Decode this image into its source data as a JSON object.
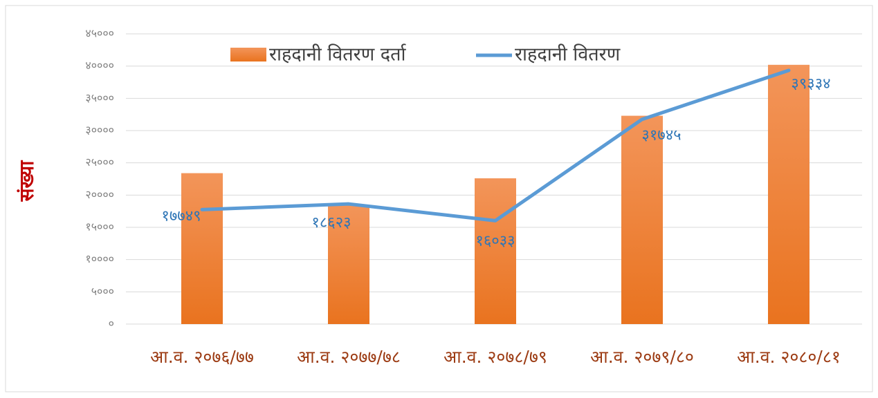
{
  "chart_data": {
    "type": "bar",
    "ylabel": "संख्या",
    "categories": [
      "आ.व. २०७६/७७",
      "आ.व. २०७७/७८",
      "आ.व. २०७८/७९",
      "आ.व. २०७९/८०",
      "आ.व. २०८०/८१"
    ],
    "series": [
      {
        "name": "राहदानी वितरण दर्ता",
        "type": "bar",
        "color": "#ed7d31",
        "values": [
          23400,
          18500,
          22600,
          32300,
          40200
        ]
      },
      {
        "name": "राहदानी वितरण",
        "type": "line",
        "color": "#5b9bd5",
        "values": [
          17749,
          18623,
          16033,
          31745,
          39334
        ],
        "value_labels": [
          "१७७४९",
          "१८६२३",
          "१६०३३",
          "३१७४५",
          "३९३३४"
        ]
      }
    ],
    "ylim": [
      0,
      45000
    ],
    "yticks": [
      {
        "value": 0,
        "label": "०"
      },
      {
        "value": 5000,
        "label": "५०००"
      },
      {
        "value": 10000,
        "label": "१००००"
      },
      {
        "value": 15000,
        "label": "१५०००"
      },
      {
        "value": 20000,
        "label": "२००००"
      },
      {
        "value": 25000,
        "label": "२५०००"
      },
      {
        "value": 30000,
        "label": "३००००"
      },
      {
        "value": 35000,
        "label": "३५०००"
      },
      {
        "value": 40000,
        "label": "४००००"
      },
      {
        "value": 45000,
        "label": "४५०००"
      }
    ],
    "grid": true,
    "legend": "top"
  }
}
